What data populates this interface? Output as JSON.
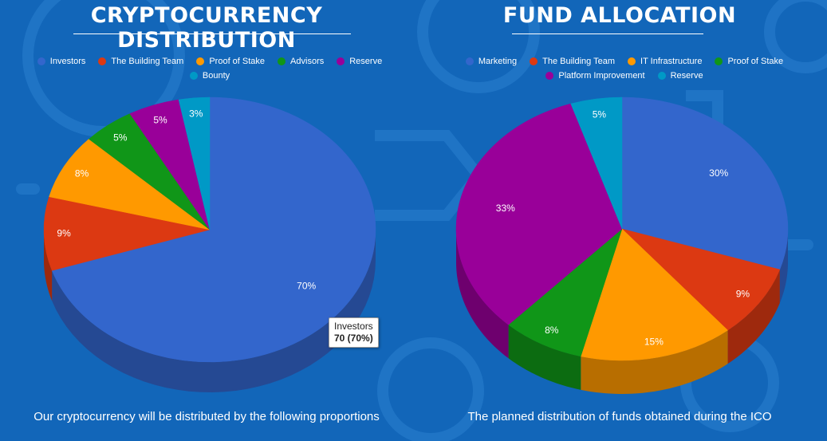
{
  "colors": {
    "background": "#1266b9",
    "text": "#ffffff",
    "palette": [
      "#3366cc",
      "#dc3912",
      "#ff9900",
      "#109618",
      "#990099",
      "#0099c6"
    ]
  },
  "chart_data": [
    {
      "type": "pie",
      "title": "CRYPTOCURRENCY DISTRIBUTION",
      "caption": "Our cryptocurrency will be distributed by the following proportions",
      "legend_position": "top",
      "categories": [
        "Investors",
        "The Building Team",
        "Proof of Stake",
        "Advisors",
        "Reserve",
        "Bounty"
      ],
      "values": [
        70,
        9,
        8,
        5,
        5,
        3
      ],
      "labels": [
        "70%",
        "9%",
        "8%",
        "5%",
        "5%",
        "3%"
      ],
      "colors": [
        "#3366cc",
        "#dc3912",
        "#ff9900",
        "#109618",
        "#990099",
        "#0099c6"
      ],
      "tooltip": {
        "category": "Investors",
        "value_text": "70 (70%)"
      }
    },
    {
      "type": "pie",
      "title": "FUND ALLOCATION",
      "caption": "The planned distribution of funds obtained during the ICO",
      "legend_position": "top",
      "categories": [
        "Marketing",
        "The Building Team",
        "IT Infrastructure",
        "Proof of Stake",
        "Platform Improvement",
        "Reserve"
      ],
      "values": [
        30,
        9,
        15,
        8,
        33,
        5
      ],
      "labels": [
        "30%",
        "9%",
        "15%",
        "8%",
        "33%",
        "5%"
      ],
      "colors": [
        "#3366cc",
        "#dc3912",
        "#ff9900",
        "#109618",
        "#990099",
        "#0099c6"
      ]
    }
  ]
}
